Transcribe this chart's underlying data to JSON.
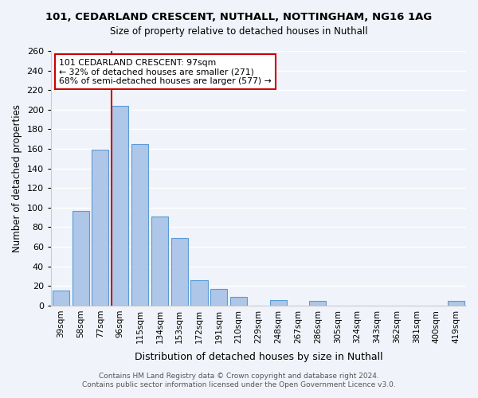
{
  "title": "101, CEDARLAND CRESCENT, NUTHALL, NOTTINGHAM, NG16 1AG",
  "subtitle": "Size of property relative to detached houses in Nuthall",
  "xlabel": "Distribution of detached houses by size in Nuthall",
  "ylabel": "Number of detached properties",
  "bar_labels": [
    "39sqm",
    "58sqm",
    "77sqm",
    "96sqm",
    "115sqm",
    "134sqm",
    "153sqm",
    "172sqm",
    "191sqm",
    "210sqm",
    "229sqm",
    "248sqm",
    "267sqm",
    "286sqm",
    "305sqm",
    "324sqm",
    "343sqm",
    "362sqm",
    "381sqm",
    "400sqm",
    "419sqm"
  ],
  "bar_values": [
    15,
    97,
    159,
    204,
    165,
    91,
    69,
    26,
    17,
    9,
    0,
    6,
    0,
    5,
    0,
    0,
    0,
    0,
    0,
    0,
    5
  ],
  "bar_color": "#aec6e8",
  "bar_edge_color": "#5b9bd5",
  "highlight_index": 3,
  "highlight_color": "#cc0000",
  "ylim": [
    0,
    260
  ],
  "yticks": [
    0,
    20,
    40,
    60,
    80,
    100,
    120,
    140,
    160,
    180,
    200,
    220,
    240,
    260
  ],
  "vline_x": 3,
  "vline_color": "#cc0000",
  "annotation_title": "101 CEDARLAND CRESCENT: 97sqm",
  "annotation_line1": "← 32% of detached houses are smaller (271)",
  "annotation_line2": "68% of semi-detached houses are larger (577) →",
  "annotation_box_color": "#ffffff",
  "annotation_box_edge": "#cc0000",
  "footer1": "Contains HM Land Registry data © Crown copyright and database right 2024.",
  "footer2": "Contains public sector information licensed under the Open Government Licence v3.0.",
  "bg_color": "#f0f4fa"
}
